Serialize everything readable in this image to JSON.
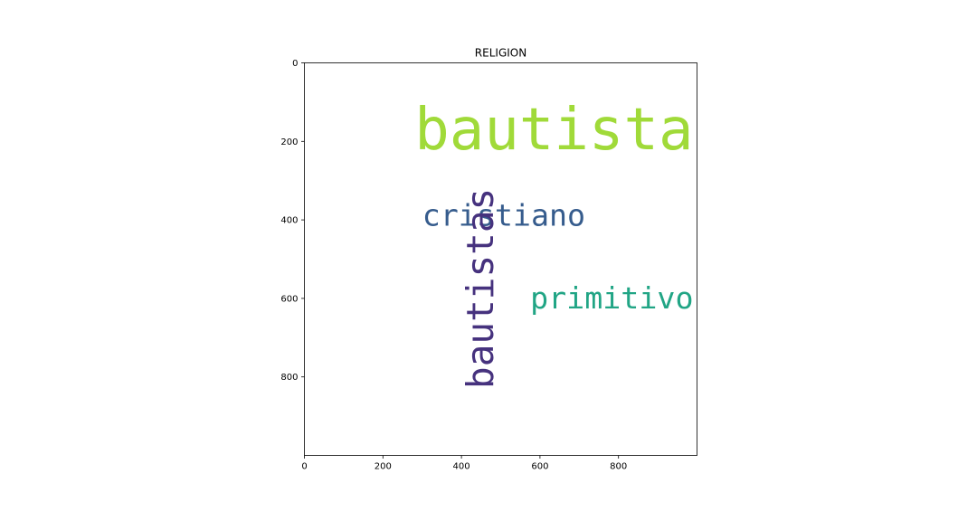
{
  "chart_data": {
    "type": "wordcloud",
    "title": "RELIGION",
    "xlabel": "",
    "ylabel": "",
    "xlim": [
      0,
      1000
    ],
    "ylim": [
      1000,
      0
    ],
    "x_ticks": [
      0,
      200,
      400,
      600,
      800
    ],
    "y_ticks": [
      0,
      200,
      400,
      600,
      800
    ],
    "grid": false,
    "words": [
      {
        "text": "bautista",
        "x": 330,
        "y": 220,
        "weight": 1.0,
        "orientation": "horizontal",
        "color": "#a0da39"
      },
      {
        "text": "cristiano",
        "x": 300,
        "y": 415,
        "weight": 0.52,
        "orientation": "horizontal",
        "color": "#365c8d"
      },
      {
        "text": "primitivo",
        "x": 610,
        "y": 625,
        "weight": 0.52,
        "orientation": "horizontal",
        "color": "#21a585"
      },
      {
        "text": "bautistas",
        "x": 453,
        "y": 540,
        "weight": 0.64,
        "orientation": "vertical",
        "color": "#46327e"
      }
    ]
  }
}
